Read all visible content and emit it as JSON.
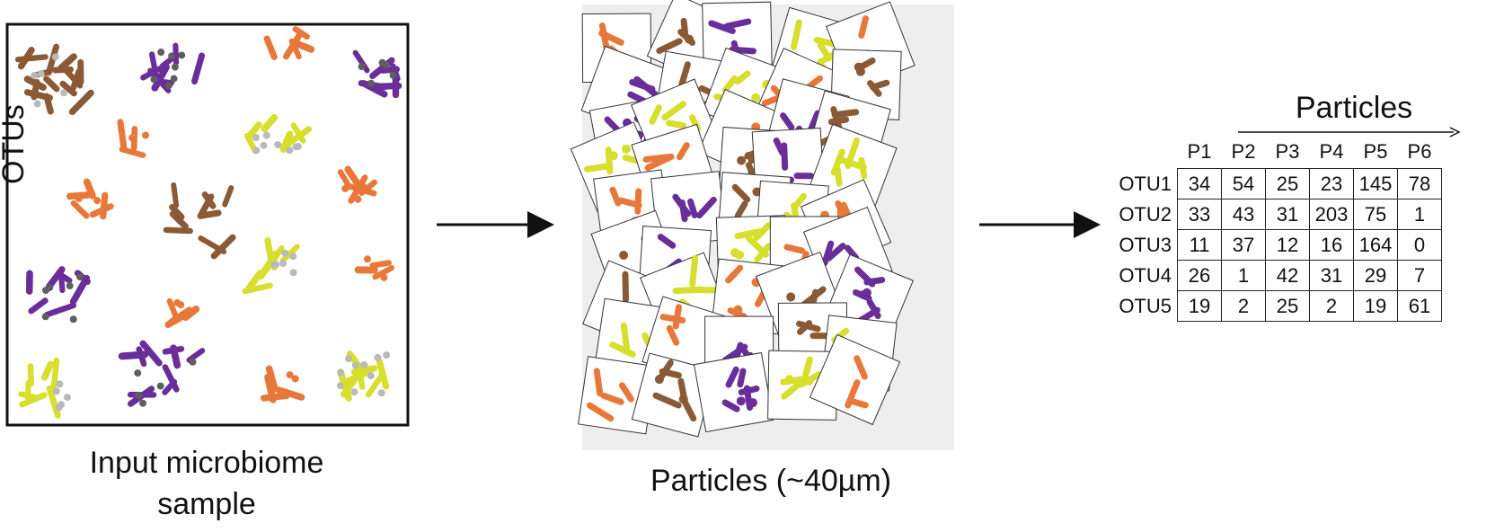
{
  "captions": {
    "input": [
      "Input microbiome",
      "sample"
    ],
    "particles": "Particles (~40µm)"
  },
  "table": {
    "title": "Particles",
    "side_label": "OTUs",
    "columns": [
      "P1",
      "P2",
      "P3",
      "P4",
      "P5",
      "P6"
    ],
    "rows": [
      {
        "label": "OTU1",
        "values": [
          "34",
          "54",
          "25",
          "23",
          "145",
          "78"
        ]
      },
      {
        "label": "OTU2",
        "values": [
          "33",
          "43",
          "31",
          "203",
          "75",
          "1"
        ]
      },
      {
        "label": "OTU3",
        "values": [
          "11",
          "37",
          "12",
          "16",
          "164",
          "0"
        ]
      },
      {
        "label": "OTU4",
        "values": [
          "26",
          "1",
          "42",
          "31",
          "29",
          "7"
        ]
      },
      {
        "label": "OTU5",
        "values": [
          "19",
          "2",
          "25",
          "2",
          "19",
          "61"
        ]
      }
    ]
  },
  "colors": {
    "brown": "#8a5a36",
    "purple": "#6a2e9a",
    "orange": "#e8783a",
    "yellow": "#d6df2c",
    "grey": "#b9b9b9",
    "darkgrey": "#5f5f5f",
    "panel_bg": "#eeeeee"
  }
}
